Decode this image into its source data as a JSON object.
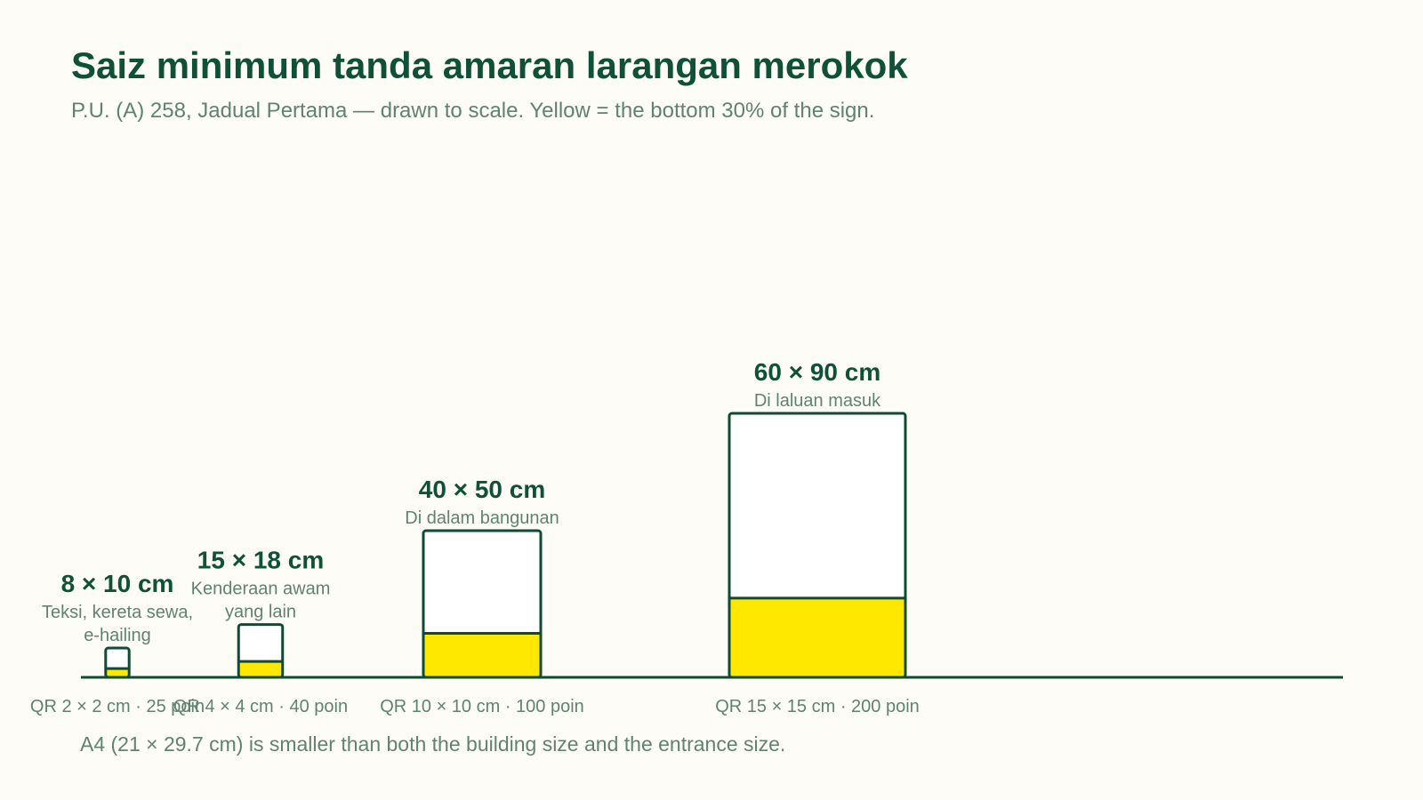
{
  "title": "Saiz minimum tanda amaran larangan merokok",
  "subtitle": "P.U. (A) 258, Jadual Pertama — drawn to scale. Yellow = the bottom 30% of the sign.",
  "footnote": "A4 (21 × 29.7 cm) is smaller than both the building size and the entrance size.",
  "colors": {
    "outline": "#0e4a35",
    "fill": "#ffffff",
    "warning_band": "#ffe800",
    "title": "#0e5138",
    "muted": "#5f8273"
  },
  "chart_data": {
    "type": "bar",
    "unit": "cm",
    "warning_band_fraction": 0.3,
    "items": [
      {
        "width_cm": 8,
        "height_cm": 10,
        "dimension_label": "8 × 10 cm",
        "usage_lines": [
          "Teksi, kereta sewa,",
          "e-hailing"
        ],
        "qr_label": "QR 2 × 2 cm · 25 poin",
        "qr_cm": 2,
        "font_pt": 25
      },
      {
        "width_cm": 15,
        "height_cm": 18,
        "dimension_label": "15 × 18 cm",
        "usage_lines": [
          "Kenderaan awam",
          "yang lain"
        ],
        "qr_label": "QR 4 × 4 cm · 40 poin",
        "qr_cm": 4,
        "font_pt": 40
      },
      {
        "width_cm": 40,
        "height_cm": 50,
        "dimension_label": "40 × 50 cm",
        "usage_lines": [
          "Di dalam bangunan"
        ],
        "qr_label": "QR 10 × 10 cm · 100 poin",
        "qr_cm": 10,
        "font_pt": 100
      },
      {
        "width_cm": 60,
        "height_cm": 90,
        "dimension_label": "60 × 90 cm",
        "usage_lines": [
          "Di laluan masuk"
        ],
        "qr_label": "QR 15 × 15 cm · 200 poin",
        "qr_cm": 15,
        "font_pt": 200
      }
    ]
  }
}
